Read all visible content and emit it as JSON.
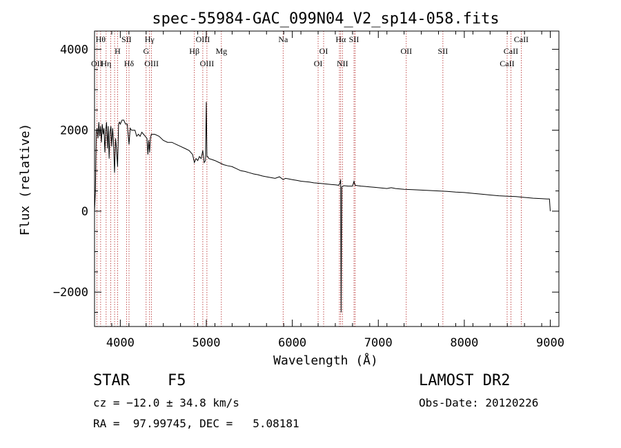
{
  "chart_data": {
    "type": "line",
    "title": "spec-55984-GAC_099N04_V2_sp14-058.fits",
    "xlabel": "Wavelength (Å)",
    "ylabel": "Flux (relative)",
    "xlim": [
      3700,
      9100
    ],
    "ylim": [
      -2850,
      4450
    ],
    "xticks": [
      4000,
      5000,
      6000,
      7000,
      8000,
      9000
    ],
    "xtick_labels": [
      "4000",
      "5000",
      "6000",
      "7000",
      "8000",
      "9000"
    ],
    "yticks": [
      -2000,
      0,
      2000,
      4000
    ],
    "ytick_labels": [
      "−2000",
      "0",
      "2000",
      "4000"
    ],
    "grid": false,
    "series": [
      {
        "x": [
          3700,
          3710,
          3720,
          3730,
          3740,
          3750,
          3760,
          3770,
          3780,
          3790,
          3800,
          3810,
          3820,
          3830,
          3840,
          3850,
          3860,
          3870,
          3880,
          3890,
          3900,
          3910,
          3920,
          3933,
          3945,
          3955,
          3968,
          3980,
          3990,
          4000,
          4010,
          4020,
          4040,
          4060,
          4080,
          4101,
          4115,
          4130,
          4150,
          4170,
          4190,
          4210,
          4230,
          4250,
          4270,
          4290,
          4310,
          4320,
          4330,
          4340,
          4350,
          4360,
          4380,
          4400,
          4450,
          4500,
          4550,
          4600,
          4650,
          4700,
          4750,
          4800,
          4840,
          4861,
          4880,
          4900,
          4920,
          4940,
          4959,
          4975,
          4990,
          5000,
          5007,
          5015,
          5030,
          5060,
          5100,
          5150,
          5200,
          5250,
          5300,
          5350,
          5400,
          5450,
          5500,
          5550,
          5600,
          5650,
          5700,
          5750,
          5800,
          5850,
          5893,
          5920,
          5950,
          6000,
          6050,
          6100,
          6150,
          6200,
          6250,
          6300,
          6350,
          6400,
          6450,
          6500,
          6540,
          6555,
          6562,
          6568,
          6575,
          6600,
          6650,
          6700,
          6717,
          6730,
          6760,
          6800,
          6850,
          6900,
          6950,
          7000,
          7050,
          7100,
          7150,
          7200,
          7300,
          7400,
          7500,
          7600,
          7700,
          7800,
          7900,
          8000,
          8100,
          8200,
          8300,
          8400,
          8500,
          8600,
          8700,
          8800,
          8900,
          8960,
          8980,
          8990,
          9000
        ],
        "y": [
          0,
          450,
          1950,
          2050,
          1800,
          2200,
          1850,
          2100,
          1700,
          2150,
          1900,
          2050,
          1450,
          2000,
          2200,
          1550,
          2100,
          1300,
          1950,
          2100,
          1600,
          2050,
          1750,
          950,
          1800,
          1550,
          1100,
          2150,
          2200,
          2150,
          2200,
          2250,
          2250,
          2150,
          2150,
          1650,
          2050,
          2000,
          2000,
          2000,
          1850,
          1900,
          1850,
          1950,
          1900,
          1850,
          1800,
          1400,
          1750,
          1450,
          1800,
          1900,
          1900,
          1900,
          1850,
          1750,
          1700,
          1700,
          1650,
          1600,
          1550,
          1500,
          1400,
          1200,
          1300,
          1250,
          1350,
          1300,
          1500,
          1200,
          1250,
          2700,
          1350,
          1350,
          1300,
          1280,
          1250,
          1200,
          1150,
          1120,
          1100,
          1050,
          1000,
          980,
          950,
          920,
          900,
          870,
          850,
          830,
          810,
          850,
          780,
          810,
          800,
          780,
          760,
          740,
          730,
          720,
          700,
          690,
          680,
          670,
          660,
          650,
          640,
          700,
          780,
          -2500,
          600,
          630,
          620,
          620,
          740,
          640,
          630,
          620,
          610,
          600,
          590,
          580,
          570,
          560,
          580,
          560,
          540,
          530,
          520,
          510,
          500,
          490,
          470,
          460,
          440,
          420,
          400,
          380,
          370,
          360,
          340,
          320,
          310,
          300,
          300,
          300,
          0
        ]
      }
    ],
    "lines": [
      {
        "wave": 3727,
        "label": "OII",
        "row": 2
      },
      {
        "wave": 3771,
        "label": "Hθ",
        "row": 0
      },
      {
        "wave": 3835,
        "label": "Hη",
        "row": 2
      },
      {
        "wave": 3889,
        "label": "",
        "row": -1
      },
      {
        "wave": 3933,
        "label": "",
        "row": -1
      },
      {
        "wave": 3968,
        "label": "H",
        "row": 1
      },
      {
        "wave": 4072,
        "label": "SII",
        "row": 0
      },
      {
        "wave": 4101,
        "label": "Hδ",
        "row": 2
      },
      {
        "wave": 4300,
        "label": "G",
        "row": 1
      },
      {
        "wave": 4340,
        "label": "Hγ",
        "row": 0
      },
      {
        "wave": 4363,
        "label": "OIII",
        "row": 2
      },
      {
        "wave": 4861,
        "label": "Hβ",
        "row": 1
      },
      {
        "wave": 4959,
        "label": "OIII",
        "row": 0
      },
      {
        "wave": 5007,
        "label": "OIII",
        "row": 2
      },
      {
        "wave": 5175,
        "label": "Mg",
        "row": 1
      },
      {
        "wave": 5893,
        "label": "Na",
        "row": 0
      },
      {
        "wave": 6300,
        "label": "OI",
        "row": 2
      },
      {
        "wave": 6364,
        "label": "OI",
        "row": 1
      },
      {
        "wave": 6548,
        "label": "",
        "row": -1
      },
      {
        "wave": 6563,
        "label": "Hα",
        "row": 0
      },
      {
        "wave": 6583,
        "label": "NII",
        "row": 2
      },
      {
        "wave": 6717,
        "label": "SII",
        "row": 0
      },
      {
        "wave": 6731,
        "label": "",
        "row": -1
      },
      {
        "wave": 7325,
        "label": "OII",
        "row": 1
      },
      {
        "wave": 7751,
        "label": "SII",
        "row": 1
      },
      {
        "wave": 8498,
        "label": "CaII",
        "row": 2
      },
      {
        "wave": 8542,
        "label": "CaII",
        "row": 1
      },
      {
        "wave": 8662,
        "label": "CaII",
        "row": 0
      }
    ]
  },
  "info": {
    "object_class": "STAR",
    "subclass": "F5",
    "survey": "LAMOST DR2",
    "cz": "cz = −12.0 ± 34.8 km/s",
    "obs_date": "Obs-Date: 20120226",
    "coords": "RA =  97.99745, DEC =   5.08181"
  },
  "colors": {
    "spectrum": "#000000",
    "line_markers": "#b22222",
    "axes": "#000000",
    "background": "#ffffff"
  }
}
